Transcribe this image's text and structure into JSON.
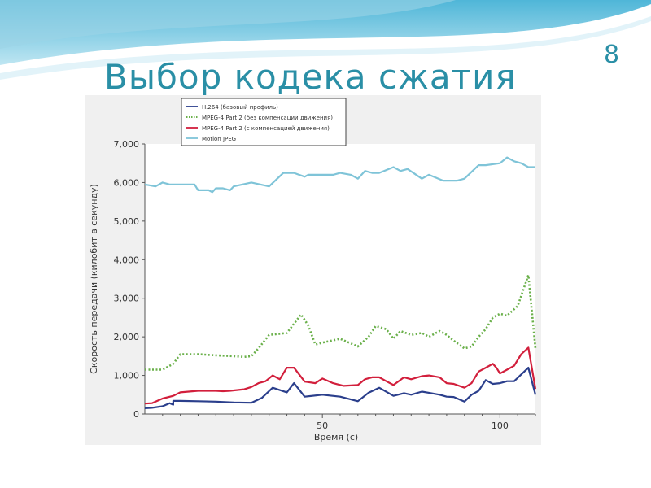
{
  "slide": {
    "title": "Выбор кодека сжатия",
    "number": "8"
  },
  "chart_data": {
    "type": "line",
    "xlabel": "Время (с)",
    "ylabel": "Скорость передачи (килобит в секунду)",
    "xlim": [
      0,
      110
    ],
    "ylim": [
      0,
      7000
    ],
    "xticks": [
      50,
      100
    ],
    "yticks": [
      0,
      1000,
      2000,
      3000,
      4000,
      5000,
      6000,
      7000
    ],
    "ytick_labels": [
      "0",
      "1,000",
      "2,000",
      "3,000",
      "4,000",
      "5,000",
      "6,000",
      "7,000"
    ],
    "grid": false,
    "legend_position": "top-left",
    "series": [
      {
        "name": "H.264 (базовый профиль)",
        "color": "#2b3f8c",
        "style": "solid",
        "x": [
          0,
          2,
          5,
          7,
          8,
          8,
          10,
          15,
          20,
          25,
          30,
          33,
          36,
          40,
          42,
          45,
          50,
          55,
          60,
          63,
          66,
          70,
          73,
          75,
          78,
          80,
          83,
          85,
          87,
          90,
          92,
          94,
          96,
          98,
          100,
          102,
          104,
          108,
          110
        ],
        "y": [
          150,
          160,
          200,
          280,
          240,
          340,
          340,
          330,
          320,
          300,
          290,
          420,
          680,
          560,
          800,
          450,
          500,
          450,
          330,
          550,
          680,
          470,
          540,
          500,
          580,
          550,
          500,
          450,
          440,
          320,
          500,
          600,
          880,
          780,
          800,
          850,
          850,
          1200,
          500
        ]
      },
      {
        "name": "MPEG-4 Part 2 (без компенсации движения)",
        "color": "#6ab04a",
        "style": "dotted",
        "x": [
          0,
          5,
          8,
          10,
          15,
          20,
          25,
          28,
          30,
          32,
          35,
          40,
          44,
          46,
          48,
          50,
          55,
          60,
          63,
          65,
          68,
          70,
          72,
          75,
          78,
          80,
          83,
          85,
          87,
          90,
          92,
          94,
          96,
          98,
          100,
          102,
          105,
          108,
          110
        ],
        "y": [
          1150,
          1150,
          1300,
          1550,
          1550,
          1520,
          1500,
          1480,
          1500,
          1700,
          2050,
          2100,
          2580,
          2300,
          1800,
          1850,
          1950,
          1750,
          2000,
          2280,
          2200,
          1950,
          2150,
          2050,
          2100,
          2000,
          2150,
          2050,
          1900,
          1700,
          1750,
          2000,
          2200,
          2500,
          2600,
          2550,
          2800,
          3600,
          1700
        ]
      },
      {
        "name": "MPEG-4 Part 2 (с компенсацией движения)",
        "color": "#d21f3c",
        "style": "solid",
        "x": [
          0,
          2,
          5,
          8,
          10,
          15,
          20,
          22,
          24,
          28,
          30,
          32,
          34,
          36,
          38,
          40,
          42,
          45,
          48,
          50,
          53,
          56,
          60,
          62,
          64,
          66,
          68,
          70,
          73,
          75,
          78,
          80,
          83,
          85,
          87,
          90,
          92,
          94,
          96,
          98,
          99,
          100,
          102,
          104,
          106,
          108,
          110
        ],
        "y": [
          270,
          280,
          400,
          470,
          560,
          600,
          600,
          590,
          600,
          640,
          700,
          800,
          850,
          1000,
          900,
          1200,
          1200,
          840,
          800,
          920,
          800,
          730,
          750,
          900,
          950,
          950,
          850,
          750,
          950,
          900,
          980,
          1000,
          950,
          800,
          780,
          680,
          800,
          1100,
          1200,
          1300,
          1200,
          1050,
          1150,
          1250,
          1550,
          1720,
          650
        ]
      },
      {
        "name": "Motion JPEG",
        "color": "#7fc4d8",
        "style": "solid",
        "x": [
          0,
          3,
          5,
          7,
          10,
          14,
          15,
          18,
          19,
          20,
          22,
          24,
          25,
          30,
          35,
          39,
          42,
          45,
          46,
          47,
          50,
          53,
          55,
          58,
          60,
          62,
          64,
          66,
          70,
          72,
          74,
          78,
          80,
          84,
          88,
          90,
          94,
          96,
          100,
          102,
          104,
          106,
          108,
          110
        ],
        "y": [
          5950,
          5900,
          6000,
          5950,
          5950,
          5950,
          5800,
          5800,
          5750,
          5850,
          5850,
          5800,
          5900,
          6000,
          5900,
          6250,
          6250,
          6150,
          6200,
          6200,
          6200,
          6200,
          6250,
          6200,
          6100,
          6300,
          6250,
          6250,
          6400,
          6300,
          6350,
          6100,
          6200,
          6050,
          6050,
          6100,
          6450,
          6450,
          6500,
          6650,
          6550,
          6500,
          6400,
          6400
        ]
      }
    ]
  }
}
